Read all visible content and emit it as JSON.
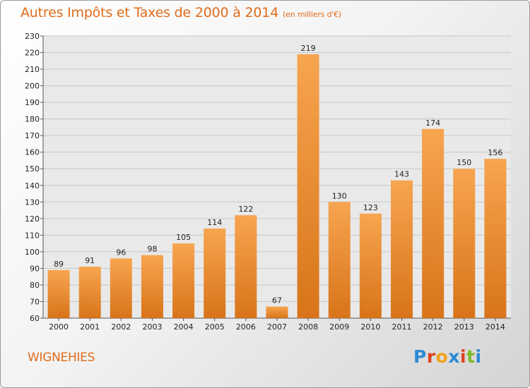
{
  "title": "Autres Impôts et Taxes de 2000 à 2014",
  "subtitle": "(en milliers d'€)",
  "commune": "WIGNEHIES",
  "logo": {
    "text": "Proxiti",
    "colors": [
      "#2a8ad6",
      "#e0421f",
      "#f2a21b",
      "#2a8ad6",
      "#e0421f",
      "#7cbc2a",
      "#2a8ad6"
    ]
  },
  "colors": {
    "bar_light": "#f7a54f",
    "bar_dark": "#d8741a",
    "text_accent": "#e06b1a"
  },
  "chart_data": {
    "type": "bar",
    "categories": [
      "2000",
      "2001",
      "2002",
      "2003",
      "2004",
      "2005",
      "2006",
      "2007",
      "2008",
      "2009",
      "2010",
      "2011",
      "2012",
      "2013",
      "2014"
    ],
    "values": [
      89,
      91,
      96,
      98,
      105,
      114,
      122,
      67,
      219,
      130,
      123,
      143,
      174,
      150,
      156
    ],
    "ylim": [
      60,
      230
    ],
    "ytick_step": 10,
    "grid": true
  }
}
